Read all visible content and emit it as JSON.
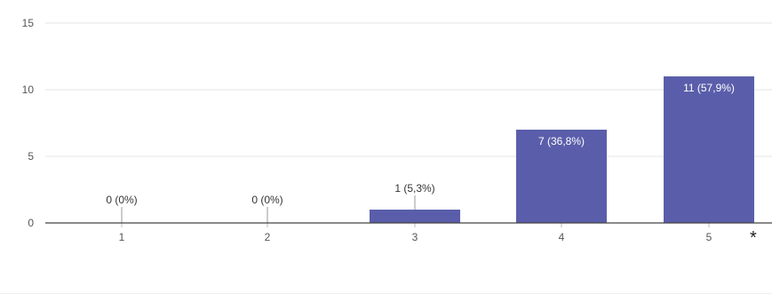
{
  "chart_data": {
    "type": "bar",
    "categories": [
      "1",
      "2",
      "3",
      "4",
      "5"
    ],
    "values": [
      0,
      0,
      1,
      7,
      11
    ],
    "data_labels": [
      "0 (0%)",
      "0 (0%)",
      "1 (5,3%)",
      "7 (36,8%)",
      "11 (57,9%)"
    ],
    "yticks": [
      "0",
      "5",
      "10",
      "15"
    ],
    "ylim": [
      0,
      15
    ],
    "grid": true,
    "bar_color": "#5a5eaa",
    "title": "",
    "xlabel": "",
    "ylabel": ""
  },
  "asterisk": "*"
}
